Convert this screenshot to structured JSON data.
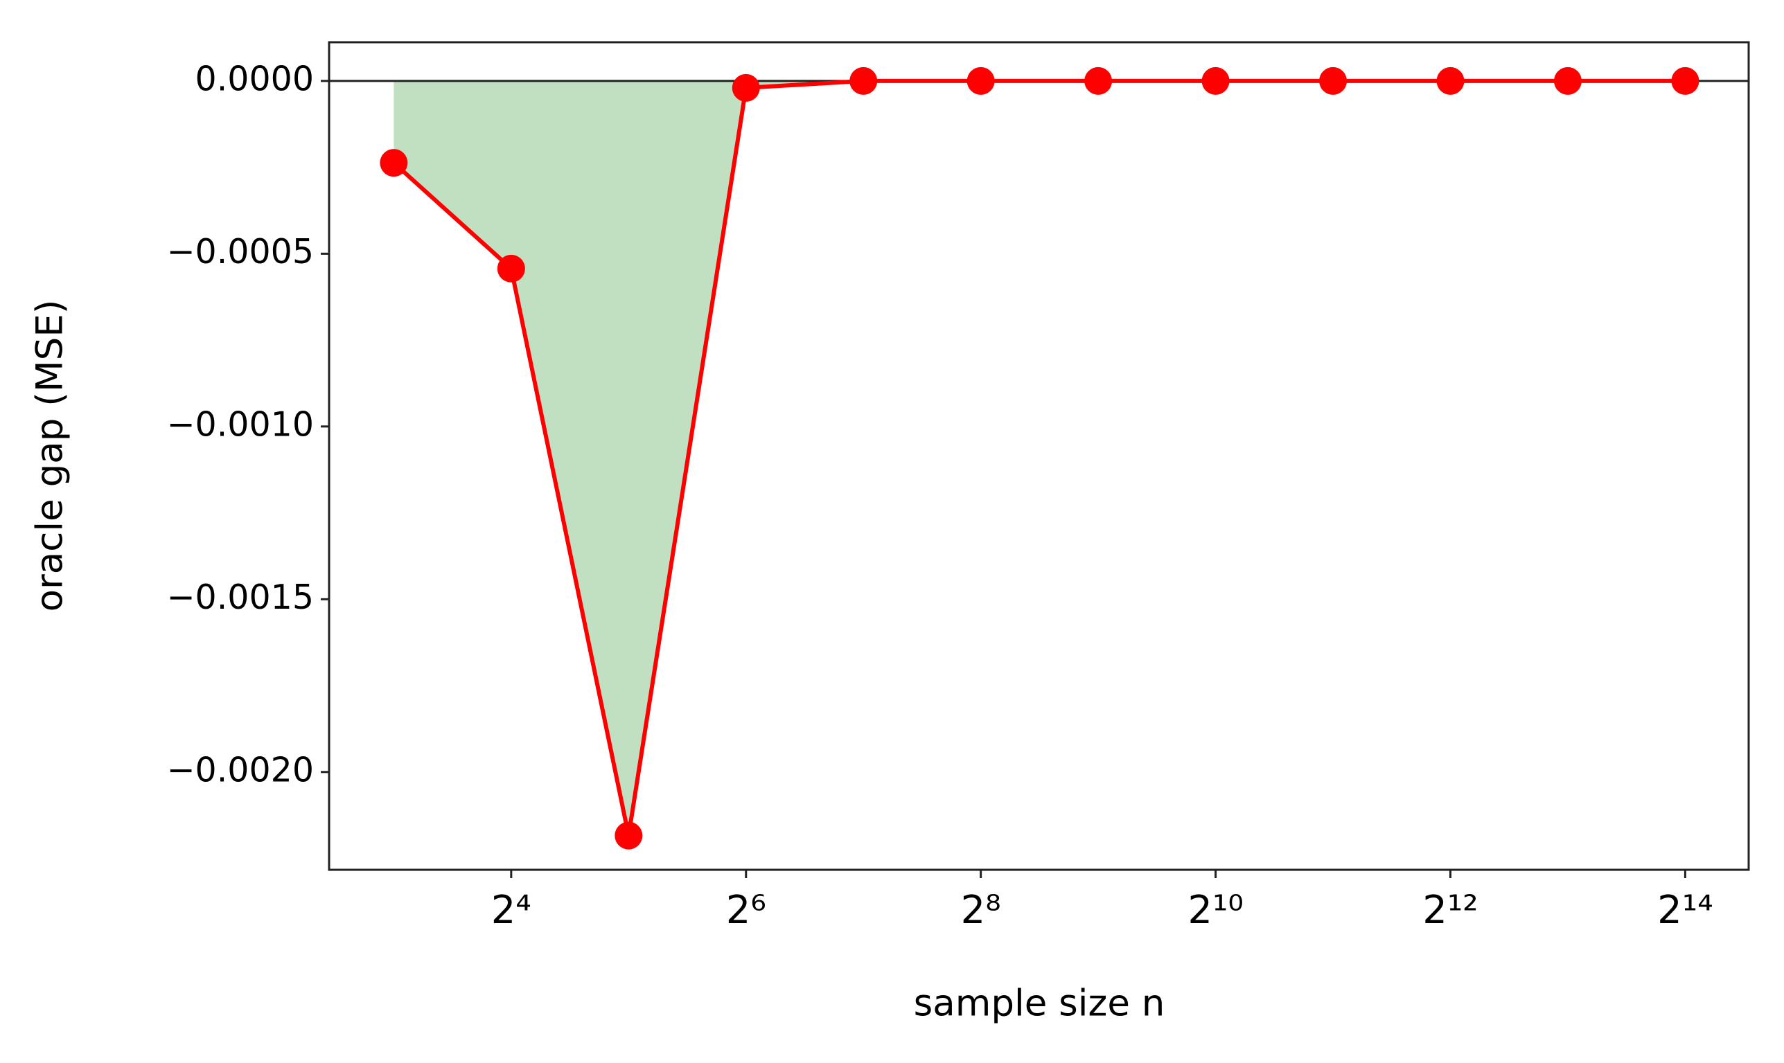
{
  "chart_data": {
    "type": "line",
    "xlabel": "sample size n",
    "ylabel": "oracle gap (MSE)",
    "x": [
      8,
      16,
      32,
      64,
      128,
      256,
      512,
      1024,
      2048,
      4096,
      8192,
      16384
    ],
    "series": [
      {
        "color": "#ff0000",
        "values": [
          -0.000237,
          -0.000543,
          -0.002184,
          -2e-05,
          0,
          0,
          0,
          0,
          0,
          0,
          0,
          0
        ]
      }
    ],
    "fill_color": "#c1dfc1",
    "reference_line": 0,
    "xscale": "log2",
    "xlim": [
      5.46,
      23830
    ],
    "ylim": [
      -0.002283,
      0.000112
    ],
    "xticks": [
      {
        "value": 16,
        "label": "2⁴"
      },
      {
        "value": 64,
        "label": "2⁶"
      },
      {
        "value": 256,
        "label": "2⁸"
      },
      {
        "value": 1024,
        "label": "2¹⁰"
      },
      {
        "value": 4096,
        "label": "2¹²"
      },
      {
        "value": 16384,
        "label": "2¹⁴"
      }
    ],
    "yticks": [
      {
        "value": 0,
        "label": "0.0000"
      },
      {
        "value": -0.0005,
        "label": "−0.0005"
      },
      {
        "value": -0.001,
        "label": "−0.0010"
      },
      {
        "value": -0.0015,
        "label": "−0.0015"
      },
      {
        "value": -0.002,
        "label": "−0.0020"
      }
    ],
    "grid": false
  }
}
